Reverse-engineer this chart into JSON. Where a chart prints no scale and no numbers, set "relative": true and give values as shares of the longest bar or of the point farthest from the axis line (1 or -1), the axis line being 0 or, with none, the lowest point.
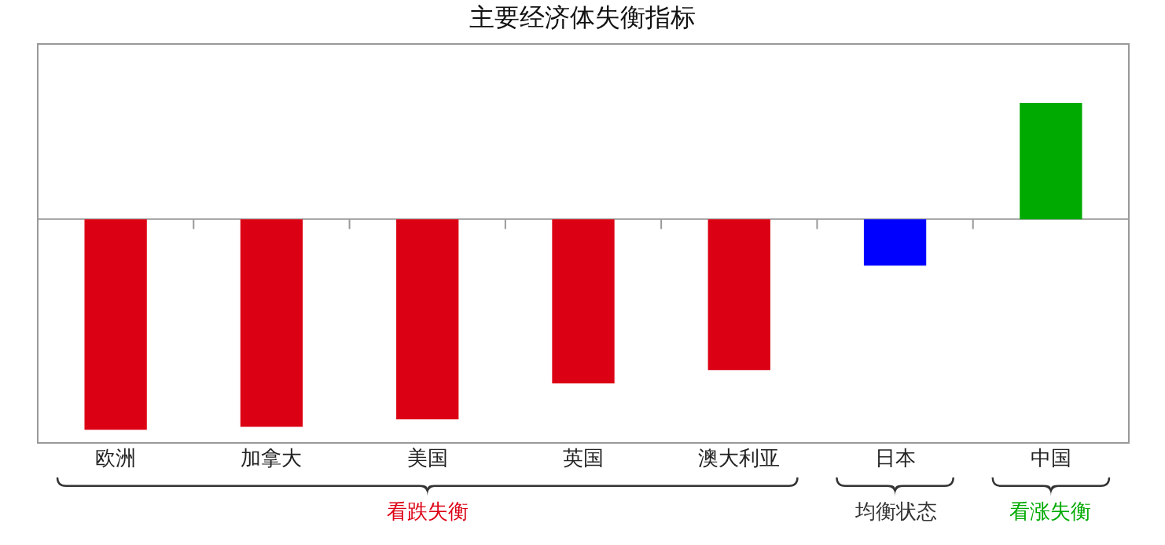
{
  "chart_data": {
    "type": "bar",
    "title": "主要经济体失衡指标",
    "relative": true,
    "categories": [
      "欧洲",
      "加拿大",
      "美国",
      "英国",
      "澳大利亚",
      "日本",
      "中国"
    ],
    "values": [
      -1,
      -0.986,
      -0.95,
      -0.78,
      -0.716,
      -0.22,
      0.553
    ],
    "colors": [
      "#dc0014",
      "#dc0014",
      "#dc0014",
      "#dc0014",
      "#dc0014",
      "#0000ff",
      "#00aa00"
    ],
    "annotations": [
      "看跌失衡",
      "均衡状态",
      "看涨失衡"
    ],
    "grid": false,
    "legend": false
  }
}
